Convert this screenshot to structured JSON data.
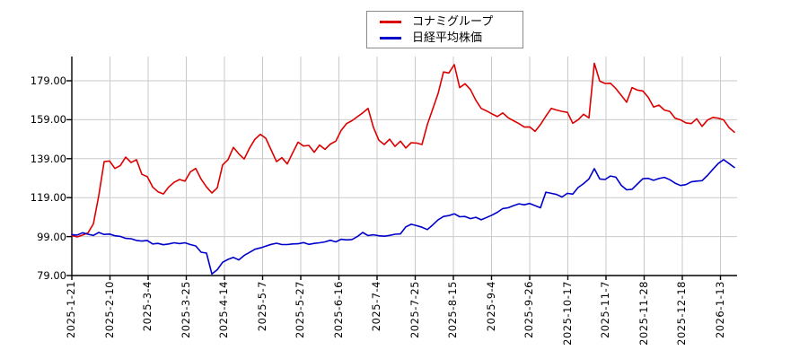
{
  "page": {
    "background": "#ffffff"
  },
  "legend": {
    "items": [
      {
        "label": "コナミグループ",
        "color": "#dd0000"
      },
      {
        "label": "日経平均株価",
        "color": "#0000cc"
      }
    ]
  },
  "chart_data": {
    "type": "line",
    "title": "",
    "xlabel": "",
    "ylabel": "",
    "grid": true,
    "legend_position": "top-center",
    "ylim": [
      79,
      191
    ],
    "y_ticks": [
      179,
      159,
      139,
      119,
      99,
      79
    ],
    "y_tick_labels": [
      "179.00",
      "159.00",
      "139.00",
      "119.00",
      "99.00",
      "79.00"
    ],
    "x_tick_labels": [
      "2025-1-21",
      "2025-2-10",
      "2025-3-4",
      "2025-3-25",
      "2025-4-14",
      "2025-5-7",
      "2025-5-27",
      "2025-6-16",
      "2025-7-4",
      "2025-7-25",
      "2025-8-15",
      "2025-9-4",
      "2025-9-26",
      "2025-10-17",
      "2025-11-7",
      "2025-11-28",
      "2025-12-18",
      "2026-1-13"
    ],
    "description": "Relative stock performance indexed to 100 at 2025-1-21, daily series",
    "series": [
      {
        "name": "コナミグループ",
        "color": "#dd0000",
        "values": [
          99.5,
          98.8,
          99.8,
          100.9,
          105.5,
          120.0,
          137.5,
          137.8,
          134.0,
          135.5,
          139.8,
          137.0,
          138.5,
          131.0,
          129.8,
          124.5,
          122.0,
          120.9,
          124.5,
          126.9,
          128.3,
          127.5,
          132.2,
          134.0,
          128.5,
          124.5,
          121.4,
          124.0,
          135.8,
          138.5,
          144.8,
          141.5,
          138.8,
          144.5,
          149.0,
          151.5,
          149.5,
          143.5,
          137.5,
          139.5,
          136.3,
          142.0,
          147.5,
          145.5,
          145.8,
          142.3,
          146.0,
          143.8,
          146.5,
          148.0,
          153.5,
          157.0,
          158.5,
          160.5,
          162.5,
          164.8,
          155.0,
          148.5,
          146.3,
          149.0,
          145.3,
          148.0,
          144.5,
          147.2,
          147.0,
          146.3,
          156.5,
          164.5,
          172.5,
          183.5,
          183.0,
          187.3,
          175.5,
          177.5,
          174.5,
          169.0,
          164.8,
          163.5,
          162.0,
          160.6,
          162.5,
          160.0,
          158.5,
          157.0,
          155.2,
          155.3,
          153.0,
          156.5,
          160.8,
          164.8,
          164.0,
          163.3,
          162.8,
          157.2,
          159.0,
          161.8,
          159.9,
          188.0,
          178.8,
          177.6,
          177.7,
          175.0,
          171.5,
          168.0,
          175.5,
          174.2,
          173.8,
          170.5,
          165.5,
          166.5,
          164.0,
          163.3,
          159.8,
          158.9,
          157.4,
          157.0,
          159.5,
          155.6,
          158.8,
          160.2,
          159.8,
          158.9,
          155.0,
          152.6
        ]
      },
      {
        "name": "日経平均株価",
        "color": "#0000cc",
        "values": [
          100.0,
          99.8,
          101.0,
          100.2,
          99.6,
          101.1,
          100.1,
          100.3,
          99.4,
          99.1,
          98.1,
          97.9,
          97.0,
          96.7,
          97.0,
          95.2,
          95.5,
          94.8,
          95.2,
          95.8,
          95.4,
          95.8,
          94.9,
          94.2,
          91.0,
          90.5,
          79.8,
          82.0,
          85.8,
          87.3,
          88.3,
          87.0,
          89.3,
          90.9,
          92.5,
          93.2,
          94.1,
          95.0,
          95.6,
          94.9,
          94.9,
          95.2,
          95.3,
          95.9,
          95.0,
          95.5,
          95.8,
          96.3,
          97.1,
          96.3,
          97.6,
          97.3,
          97.5,
          99.0,
          101.1,
          99.5,
          99.9,
          99.4,
          99.2,
          99.6,
          100.2,
          100.4,
          104.0,
          105.3,
          104.6,
          103.8,
          102.6,
          105.0,
          107.6,
          109.3,
          109.8,
          110.7,
          109.2,
          109.3,
          108.2,
          108.9,
          107.6,
          108.8,
          110.0,
          111.5,
          113.4,
          113.8,
          114.9,
          115.8,
          115.3,
          116.0,
          114.9,
          113.8,
          121.8,
          121.2,
          120.6,
          119.3,
          121.2,
          120.8,
          124.2,
          126.2,
          128.6,
          133.9,
          128.6,
          128.3,
          130.1,
          129.5,
          125.3,
          123.0,
          123.3,
          126.0,
          128.7,
          128.9,
          127.9,
          128.8,
          129.4,
          128.2,
          126.4,
          125.2,
          125.7,
          127.1,
          127.5,
          127.7,
          130.4,
          133.5,
          136.5,
          138.5,
          136.5,
          134.5
        ]
      }
    ],
    "colors": {
      "grid": "#c9c9c9",
      "axis": "#000000",
      "text": "#000000"
    }
  }
}
